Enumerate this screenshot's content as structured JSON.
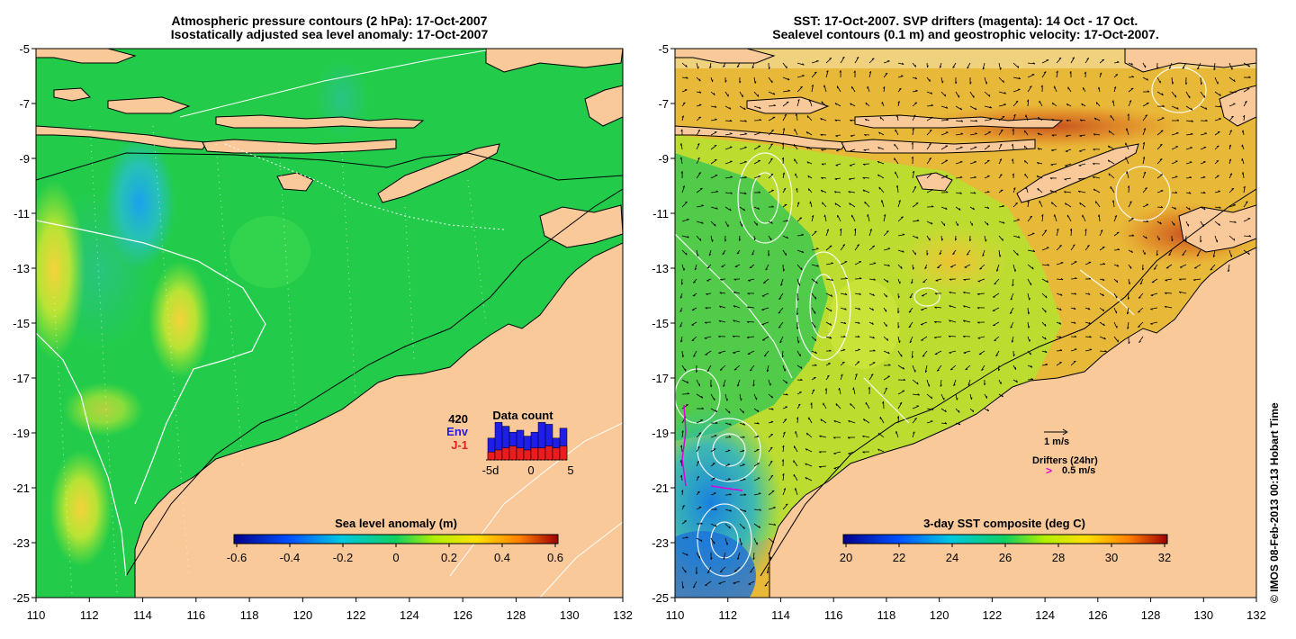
{
  "left_panel": {
    "title_line1": "Atmospheric pressure contours (2 hPa): 17-Oct-2007",
    "title_line2": "Isostatically adjusted sea level anomaly: 17-Oct-2007",
    "colorbar_label": "Sea level anomaly (m)",
    "colorbar_ticks": [
      "-0.6",
      "-0.4",
      "-0.2",
      "0",
      "0.2",
      "0.4",
      "0.6"
    ],
    "inset": {
      "title": "Data count",
      "count": "420",
      "legend_env": "Env",
      "legend_j1": "J-1",
      "x_ticks": [
        "-5d",
        "0",
        "5"
      ],
      "env_color": "#1e1ee6",
      "j1_color": "#e61e1e",
      "bars": [
        {
          "env": 0.55,
          "j1": 0.2
        },
        {
          "env": 0.95,
          "j1": 0.25
        },
        {
          "env": 0.85,
          "j1": 0.3
        },
        {
          "env": 0.7,
          "j1": 0.35
        },
        {
          "env": 0.75,
          "j1": 0.3
        },
        {
          "env": 0.6,
          "j1": 0.25
        },
        {
          "env": 0.7,
          "j1": 0.3
        },
        {
          "env": 0.95,
          "j1": 0.3
        },
        {
          "env": 0.9,
          "j1": 0.35
        },
        {
          "env": 0.55,
          "j1": 0.3
        },
        {
          "env": 0.8,
          "j1": 0.35
        }
      ]
    }
  },
  "right_panel": {
    "title_line1": "SST: 17-Oct-2007. SVP drifters (magenta): 14 Oct - 17 Oct.",
    "title_line2": "Sealevel contours (0.1 m) and geostrophic velocity: 17-Oct-2007.",
    "colorbar_label": "3-day SST composite (deg C)",
    "colorbar_ticks": [
      "20",
      "22",
      "24",
      "26",
      "28",
      "30",
      "32"
    ],
    "velocity_scale_label": "1 m/s",
    "drifters_label": "Drifters (24hr)",
    "drifter_scale_label": "0.5 m/s",
    "drifter_symbol": ">"
  },
  "axes": {
    "lon_ticks": [
      "110",
      "112",
      "114",
      "116",
      "118",
      "120",
      "122",
      "124",
      "126",
      "128",
      "130",
      "132"
    ],
    "lat_ticks": [
      "-5",
      "-7",
      "-9",
      "-11",
      "-13",
      "-15",
      "-17",
      "-19",
      "-21",
      "-23",
      "-25"
    ]
  },
  "colors": {
    "land": "#f9c99a",
    "coastline": "#000000",
    "contour": "#ffffff",
    "magenta": "#e000e0"
  },
  "copyright": "© IMOS 08-Feb-2013 00:13 Hobart Time"
}
